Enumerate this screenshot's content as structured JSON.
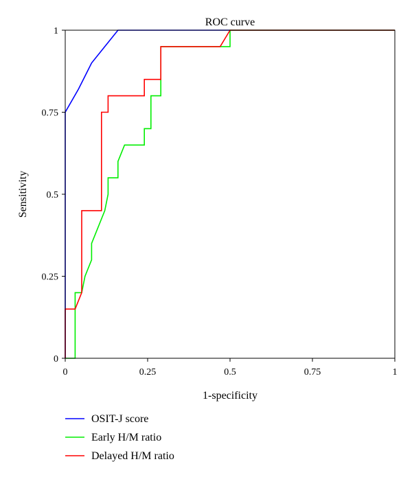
{
  "chart_data": {
    "type": "line",
    "title": "ROC curve",
    "xlabel": "1-specificity",
    "ylabel": "Sensitivity",
    "xlim": [
      0,
      1
    ],
    "ylim": [
      0,
      1
    ],
    "x_ticks": [
      0,
      0.25,
      0.5,
      0.75,
      1
    ],
    "x_tick_labels": [
      "0",
      "0.25",
      "0.5",
      "0.75",
      "1"
    ],
    "y_ticks": [
      0,
      0.25,
      0.5,
      0.75,
      1
    ],
    "y_tick_labels": [
      "0",
      "0.25",
      "0.5",
      "0.75",
      "1"
    ],
    "grid": false,
    "legend_position": "bottom-left",
    "series": [
      {
        "name": "OSIT-J score",
        "color": "#0000ff",
        "points": [
          [
            0,
            0
          ],
          [
            0,
            0.75
          ],
          [
            0.04,
            0.82
          ],
          [
            0.08,
            0.9
          ],
          [
            0.12,
            0.95
          ],
          [
            0.16,
            1
          ],
          [
            0.5,
            1
          ],
          [
            1,
            1
          ]
        ]
      },
      {
        "name": "Early H/M ratio",
        "color": "#00ee00",
        "points": [
          [
            0,
            0
          ],
          [
            0.03,
            0
          ],
          [
            0.03,
            0.2
          ],
          [
            0.05,
            0.2
          ],
          [
            0.06,
            0.25
          ],
          [
            0.08,
            0.3
          ],
          [
            0.08,
            0.35
          ],
          [
            0.1,
            0.4
          ],
          [
            0.12,
            0.45
          ],
          [
            0.13,
            0.5
          ],
          [
            0.13,
            0.55
          ],
          [
            0.16,
            0.55
          ],
          [
            0.16,
            0.6
          ],
          [
            0.18,
            0.65
          ],
          [
            0.24,
            0.65
          ],
          [
            0.24,
            0.7
          ],
          [
            0.26,
            0.7
          ],
          [
            0.26,
            0.8
          ],
          [
            0.29,
            0.8
          ],
          [
            0.29,
            0.95
          ],
          [
            0.45,
            0.95
          ],
          [
            0.47,
            0.95
          ],
          [
            0.5,
            0.95
          ],
          [
            0.5,
            1
          ],
          [
            1,
            1
          ]
        ]
      },
      {
        "name": "Delayed H/M ratio",
        "color": "#ff0000",
        "points": [
          [
            0,
            0
          ],
          [
            0,
            0.15
          ],
          [
            0.03,
            0.15
          ],
          [
            0.05,
            0.2
          ],
          [
            0.05,
            0.45
          ],
          [
            0.11,
            0.45
          ],
          [
            0.11,
            0.75
          ],
          [
            0.13,
            0.75
          ],
          [
            0.13,
            0.8
          ],
          [
            0.24,
            0.8
          ],
          [
            0.24,
            0.85
          ],
          [
            0.29,
            0.85
          ],
          [
            0.29,
            0.95
          ],
          [
            0.47,
            0.95
          ],
          [
            0.5,
            1
          ],
          [
            1,
            1
          ]
        ]
      }
    ]
  }
}
